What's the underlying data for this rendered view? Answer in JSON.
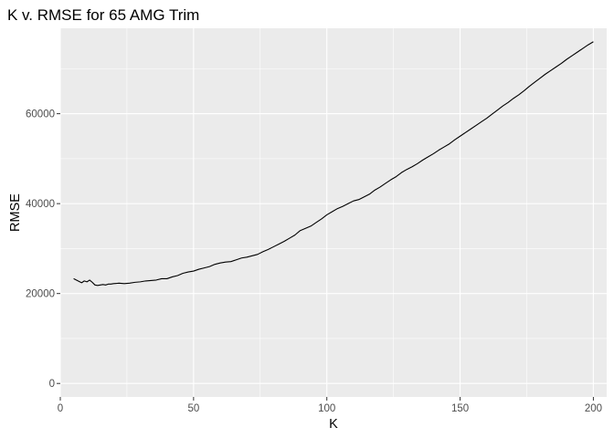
{
  "chart_data": {
    "type": "line",
    "title": "K v. RMSE for 65 AMG Trim",
    "xlabel": "K",
    "ylabel": "RMSE",
    "xlim": [
      0,
      205
    ],
    "ylim": [
      -3000,
      79000
    ],
    "x_ticks": [
      0,
      50,
      100,
      150,
      200
    ],
    "y_ticks": [
      0,
      20000,
      40000,
      60000
    ],
    "x_tick_labels": [
      "0",
      "50",
      "100",
      "150",
      "200"
    ],
    "y_tick_labels": [
      "0",
      "20000",
      "40000",
      "60000"
    ],
    "grid": true,
    "legend": "none",
    "colors": {
      "panel_background": "#ebebeb",
      "grid_major": "#ffffff",
      "line": "#000000"
    },
    "series": [
      {
        "x": [
          5,
          6,
          7,
          8,
          9,
          10,
          11,
          12,
          13,
          14,
          15,
          16,
          17,
          18,
          19,
          20,
          22,
          24,
          26,
          28,
          30,
          32,
          34,
          36,
          38,
          40,
          42,
          44,
          46,
          48,
          50,
          52,
          54,
          56,
          58,
          60,
          62,
          64,
          66,
          68,
          70,
          72,
          74,
          76,
          78,
          80,
          82,
          84,
          86,
          88,
          90,
          92,
          94,
          96,
          98,
          100,
          102,
          104,
          106,
          108,
          110,
          112,
          114,
          116,
          118,
          120,
          122,
          124,
          126,
          128,
          130,
          132,
          134,
          136,
          138,
          140,
          142,
          144,
          146,
          148,
          150,
          152,
          154,
          156,
          158,
          160,
          162,
          164,
          166,
          168,
          170,
          172,
          174,
          176,
          178,
          180,
          182,
          184,
          186,
          188,
          190,
          192,
          194,
          196,
          198,
          200
        ],
        "y": [
          23300,
          23000,
          22700,
          22400,
          22800,
          22600,
          23000,
          22500,
          21900,
          21800,
          21900,
          22000,
          21900,
          22100,
          22100,
          22200,
          22300,
          22200,
          22300,
          22500,
          22600,
          22800,
          22900,
          23000,
          23300,
          23300,
          23700,
          24000,
          24500,
          24800,
          25000,
          25400,
          25700,
          26000,
          26500,
          26800,
          27000,
          27100,
          27500,
          27900,
          28100,
          28400,
          28700,
          29300,
          29800,
          30400,
          31000,
          31600,
          32300,
          33000,
          34000,
          34500,
          35000,
          35800,
          36600,
          37500,
          38200,
          38900,
          39400,
          40000,
          40600,
          40900,
          41500,
          42100,
          43000,
          43700,
          44500,
          45300,
          46000,
          46900,
          47600,
          48200,
          48900,
          49700,
          50400,
          51100,
          51900,
          52600,
          53300,
          54200,
          55000,
          55800,
          56600,
          57400,
          58200,
          59000,
          59900,
          60800,
          61700,
          62500,
          63400,
          64200,
          65100,
          66100,
          67000,
          67900,
          68800,
          69600,
          70400,
          71200,
          72100,
          72900,
          73700,
          74500,
          75300,
          76000
        ]
      }
    ]
  }
}
